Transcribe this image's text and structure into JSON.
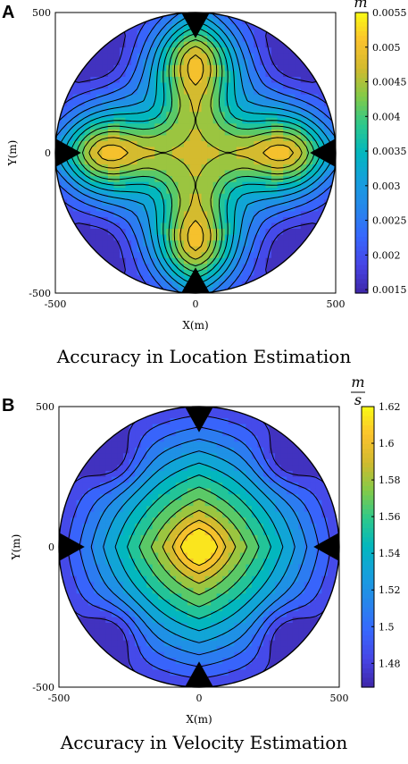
{
  "chart_data": [
    {
      "type": "heatmap",
      "panel_label": "A",
      "title": "Accuracy in Location Estimation",
      "xlabel": "X(m)",
      "ylabel": "Y(m)",
      "xlim": [
        -500,
        500
      ],
      "ylim": [
        -500,
        500
      ],
      "x_ticks": [
        "-500",
        "0",
        "500"
      ],
      "y_ticks": [
        "500",
        "0",
        "-500"
      ],
      "x_tick_values": [
        -500,
        0,
        500
      ],
      "y_tick_values": [
        500,
        0,
        -500
      ],
      "colorbar": {
        "unit": "m",
        "unit_denominator": "",
        "range": [
          0.00145,
          0.0055
        ],
        "ticks": [
          "0.0055",
          "0.005",
          "0.0045",
          "0.004",
          "0.0035",
          "0.003",
          "0.0025",
          "0.002",
          "0.0015"
        ],
        "tick_values": [
          0.0055,
          0.005,
          0.0045,
          0.004,
          0.0035,
          0.003,
          0.0025,
          0.002,
          0.0015
        ]
      },
      "region": "disk of radius 500 m centred at (0, 0)",
      "levels": [
        0.0017,
        0.002,
        0.0023,
        0.0026,
        0.0029,
        0.0032,
        0.0035,
        0.0038,
        0.0041,
        0.0044,
        0.0047,
        0.005,
        0.0053
      ],
      "field": {
        "center_value": 0.0052,
        "max_value": 0.0055,
        "maxima_locations": [
          [
            0,
            330
          ],
          [
            0,
            -330
          ],
          [
            -330,
            0
          ],
          [
            330,
            0
          ]
        ],
        "corner_value": 0.0015,
        "lowest_regions": "diagonal corners near (±330, ±330)"
      },
      "markers": [
        {
          "shape": "triangle-down",
          "x": 0,
          "y": 500
        },
        {
          "shape": "triangle-up",
          "x": 0,
          "y": -500
        },
        {
          "shape": "triangle-right",
          "x": -500,
          "y": 0
        },
        {
          "shape": "triangle-left",
          "x": 500,
          "y": 0
        }
      ]
    },
    {
      "type": "heatmap",
      "panel_label": "B",
      "title": "Accuracy in Velocity Estimation",
      "xlabel": "X(m)",
      "ylabel": "Y(m)",
      "xlim": [
        -500,
        500
      ],
      "ylim": [
        -500,
        500
      ],
      "x_ticks": [
        "-500",
        "0",
        "500"
      ],
      "y_ticks": [
        "500",
        "0",
        "-500"
      ],
      "x_tick_values": [
        -500,
        0,
        500
      ],
      "y_tick_values": [
        500,
        0,
        -500
      ],
      "colorbar": {
        "unit": "m",
        "unit_denominator": "s",
        "range": [
          1.467,
          1.62
        ],
        "ticks": [
          "1.62",
          "1.6",
          "1.58",
          "1.56",
          "1.54",
          "1.52",
          "1.5",
          "1.48"
        ],
        "tick_values": [
          1.62,
          1.6,
          1.58,
          1.56,
          1.54,
          1.52,
          1.5,
          1.48
        ]
      },
      "region": "disk of radius 500 m centred at (0, 0)",
      "levels": [
        1.477,
        1.487,
        1.497,
        1.507,
        1.517,
        1.527,
        1.537,
        1.547,
        1.557,
        1.567,
        1.577,
        1.587,
        1.597,
        1.607
      ],
      "field": {
        "center_value": 1.615,
        "max_value": 1.62,
        "maxima_locations": [
          [
            0,
            0
          ]
        ],
        "corner_value": 1.47,
        "lowest_regions": "diagonal corners near (±330, ±330)"
      },
      "markers": [
        {
          "shape": "triangle-down",
          "x": 0,
          "y": 500
        },
        {
          "shape": "triangle-up",
          "x": 0,
          "y": -500
        },
        {
          "shape": "triangle-right",
          "x": -500,
          "y": 0
        },
        {
          "shape": "triangle-left",
          "x": 500,
          "y": 0
        }
      ]
    }
  ]
}
